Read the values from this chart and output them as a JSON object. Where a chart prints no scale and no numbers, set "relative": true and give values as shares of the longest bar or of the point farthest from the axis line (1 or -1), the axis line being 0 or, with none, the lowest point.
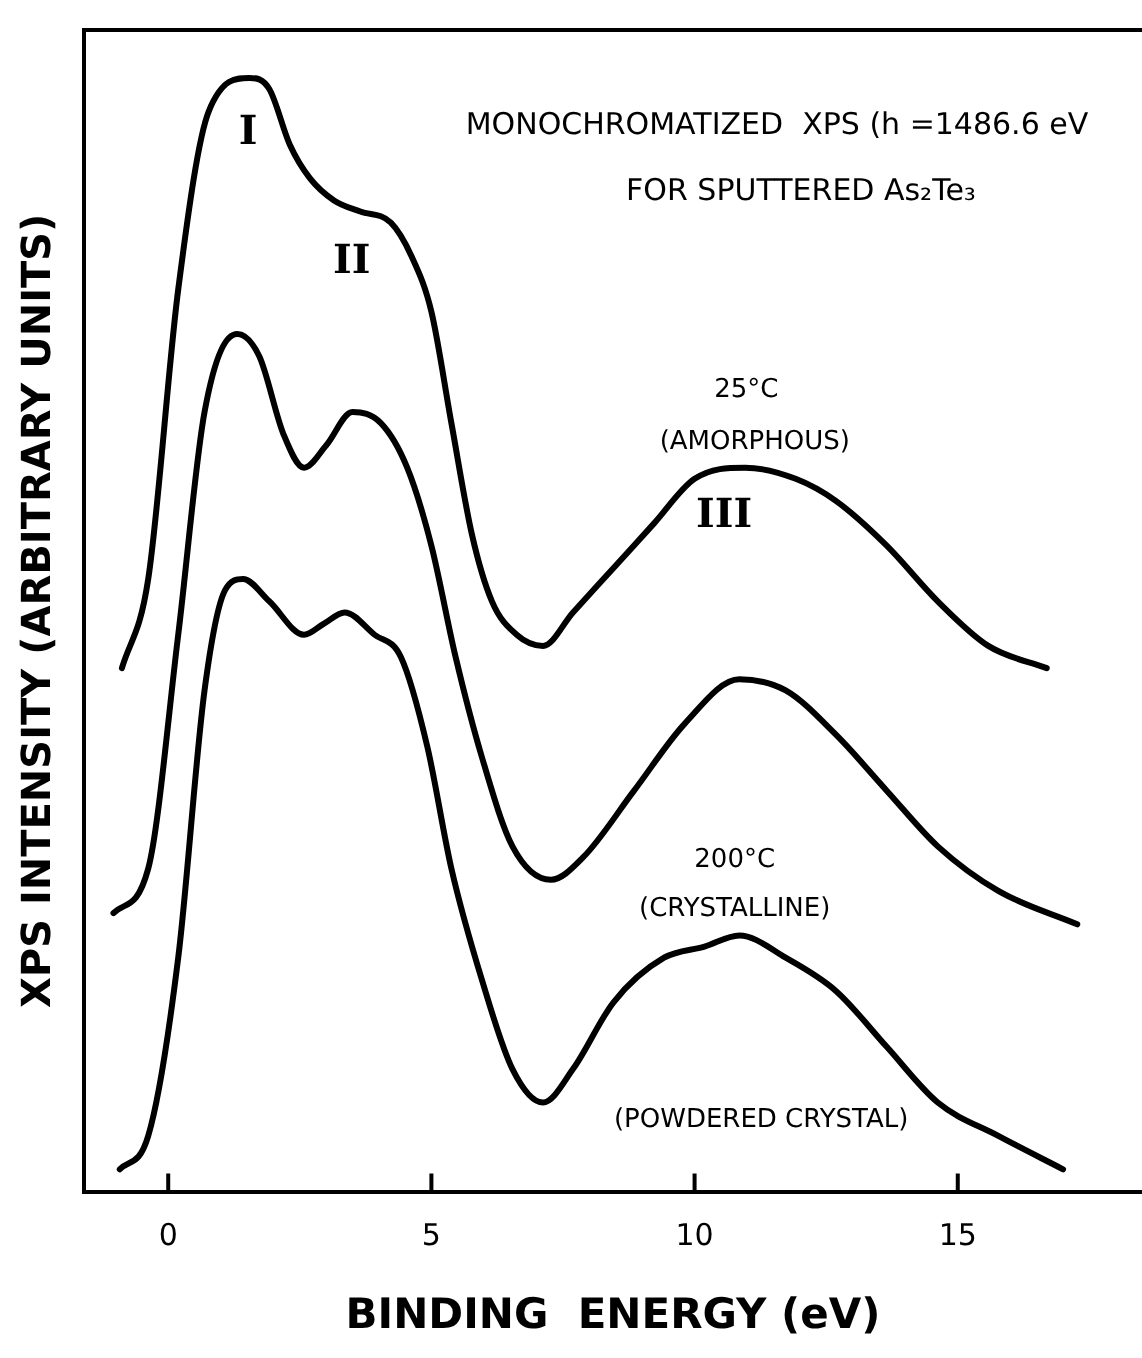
{
  "chart_data": {
    "type": "line",
    "title": "MONOCHROMATIZED  XPS (h =1486.6 eV",
    "subtitle": "FOR SPUTTERED As₂Te₃",
    "xlabel": "BINDING  ENERGY (eV)",
    "ylabel": "XPS INTENSITY (ARBITRARY UNITS)",
    "relative": true,
    "xlim": [
      -1.6,
      18.5
    ],
    "xticks": [
      0,
      5,
      10,
      15
    ],
    "grid": false,
    "legend": false,
    "marker": "none",
    "line_style": "solid",
    "series": [
      {
        "color": "#000000",
        "x": [
          -0.88,
          -0.38,
          0.19,
          0.77,
          1.54,
          1.92,
          2.31,
          2.69,
          3.15,
          3.65,
          4.23,
          4.62,
          5.0,
          5.38,
          5.77,
          6.15,
          6.62,
          7.12,
          7.69,
          8.46,
          9.23,
          10.0,
          10.96,
          11.92,
          12.69,
          13.65,
          14.62,
          15.58,
          16.69
        ],
        "values": [
          0.47,
          0.55,
          0.81,
          0.97,
          1,
          0.99,
          0.94,
          0.91,
          0.89,
          0.88,
          0.87,
          0.84,
          0.79,
          0.69,
          0.59,
          0.53,
          0.5,
          0.49,
          0.52,
          0.56,
          0.6,
          0.64,
          0.65,
          0.64,
          0.62,
          0.58,
          0.53,
          0.49,
          0.47
        ]
      },
      {
        "color": "#000000",
        "x": [
          -1.04,
          -0.38,
          0.19,
          0.69,
          1.31,
          1.73,
          2.19,
          2.58,
          3.0,
          3.5,
          4.04,
          4.54,
          5.0,
          5.46,
          5.96,
          6.54,
          7.27,
          7.88,
          8.85,
          9.81,
          10.85,
          11.73,
          12.69,
          13.65,
          14.62,
          15.77,
          17.27
        ],
        "values": [
          0.25,
          0.29,
          0.5,
          0.7,
          0.77,
          0.75,
          0.68,
          0.65,
          0.67,
          0.7,
          0.69,
          0.65,
          0.58,
          0.48,
          0.39,
          0.31,
          0.28,
          0.3,
          0.36,
          0.42,
          0.46,
          0.45,
          0.41,
          0.36,
          0.31,
          0.27,
          0.24
        ]
      },
      {
        "color": "#000000",
        "x": [
          -0.92,
          -0.38,
          0.19,
          0.69,
          1.08,
          1.42,
          1.92,
          2.58,
          2.96,
          3.35,
          3.92,
          4.42,
          4.92,
          5.38,
          5.96,
          6.54,
          7.12,
          7.69,
          8.46,
          9.42,
          10.19,
          10.85,
          11.73,
          12.69,
          13.65,
          14.62,
          15.77,
          17.0
        ],
        "values": [
          0.02,
          0.05,
          0.21,
          0.45,
          0.54,
          0.55,
          0.53,
          0.5,
          0.51,
          0.52,
          0.5,
          0.48,
          0.4,
          0.29,
          0.19,
          0.11,
          0.08,
          0.11,
          0.17,
          0.21,
          0.22,
          0.23,
          0.21,
          0.18,
          0.13,
          0.08,
          0.05,
          0.02
        ]
      }
    ],
    "annotations": [
      "I",
      "II",
      "III",
      "25°C",
      "(AMORPHOUS)",
      "200°C",
      "(CRYSTALLINE)",
      "(POWDERED CRYSTAL)"
    ]
  }
}
